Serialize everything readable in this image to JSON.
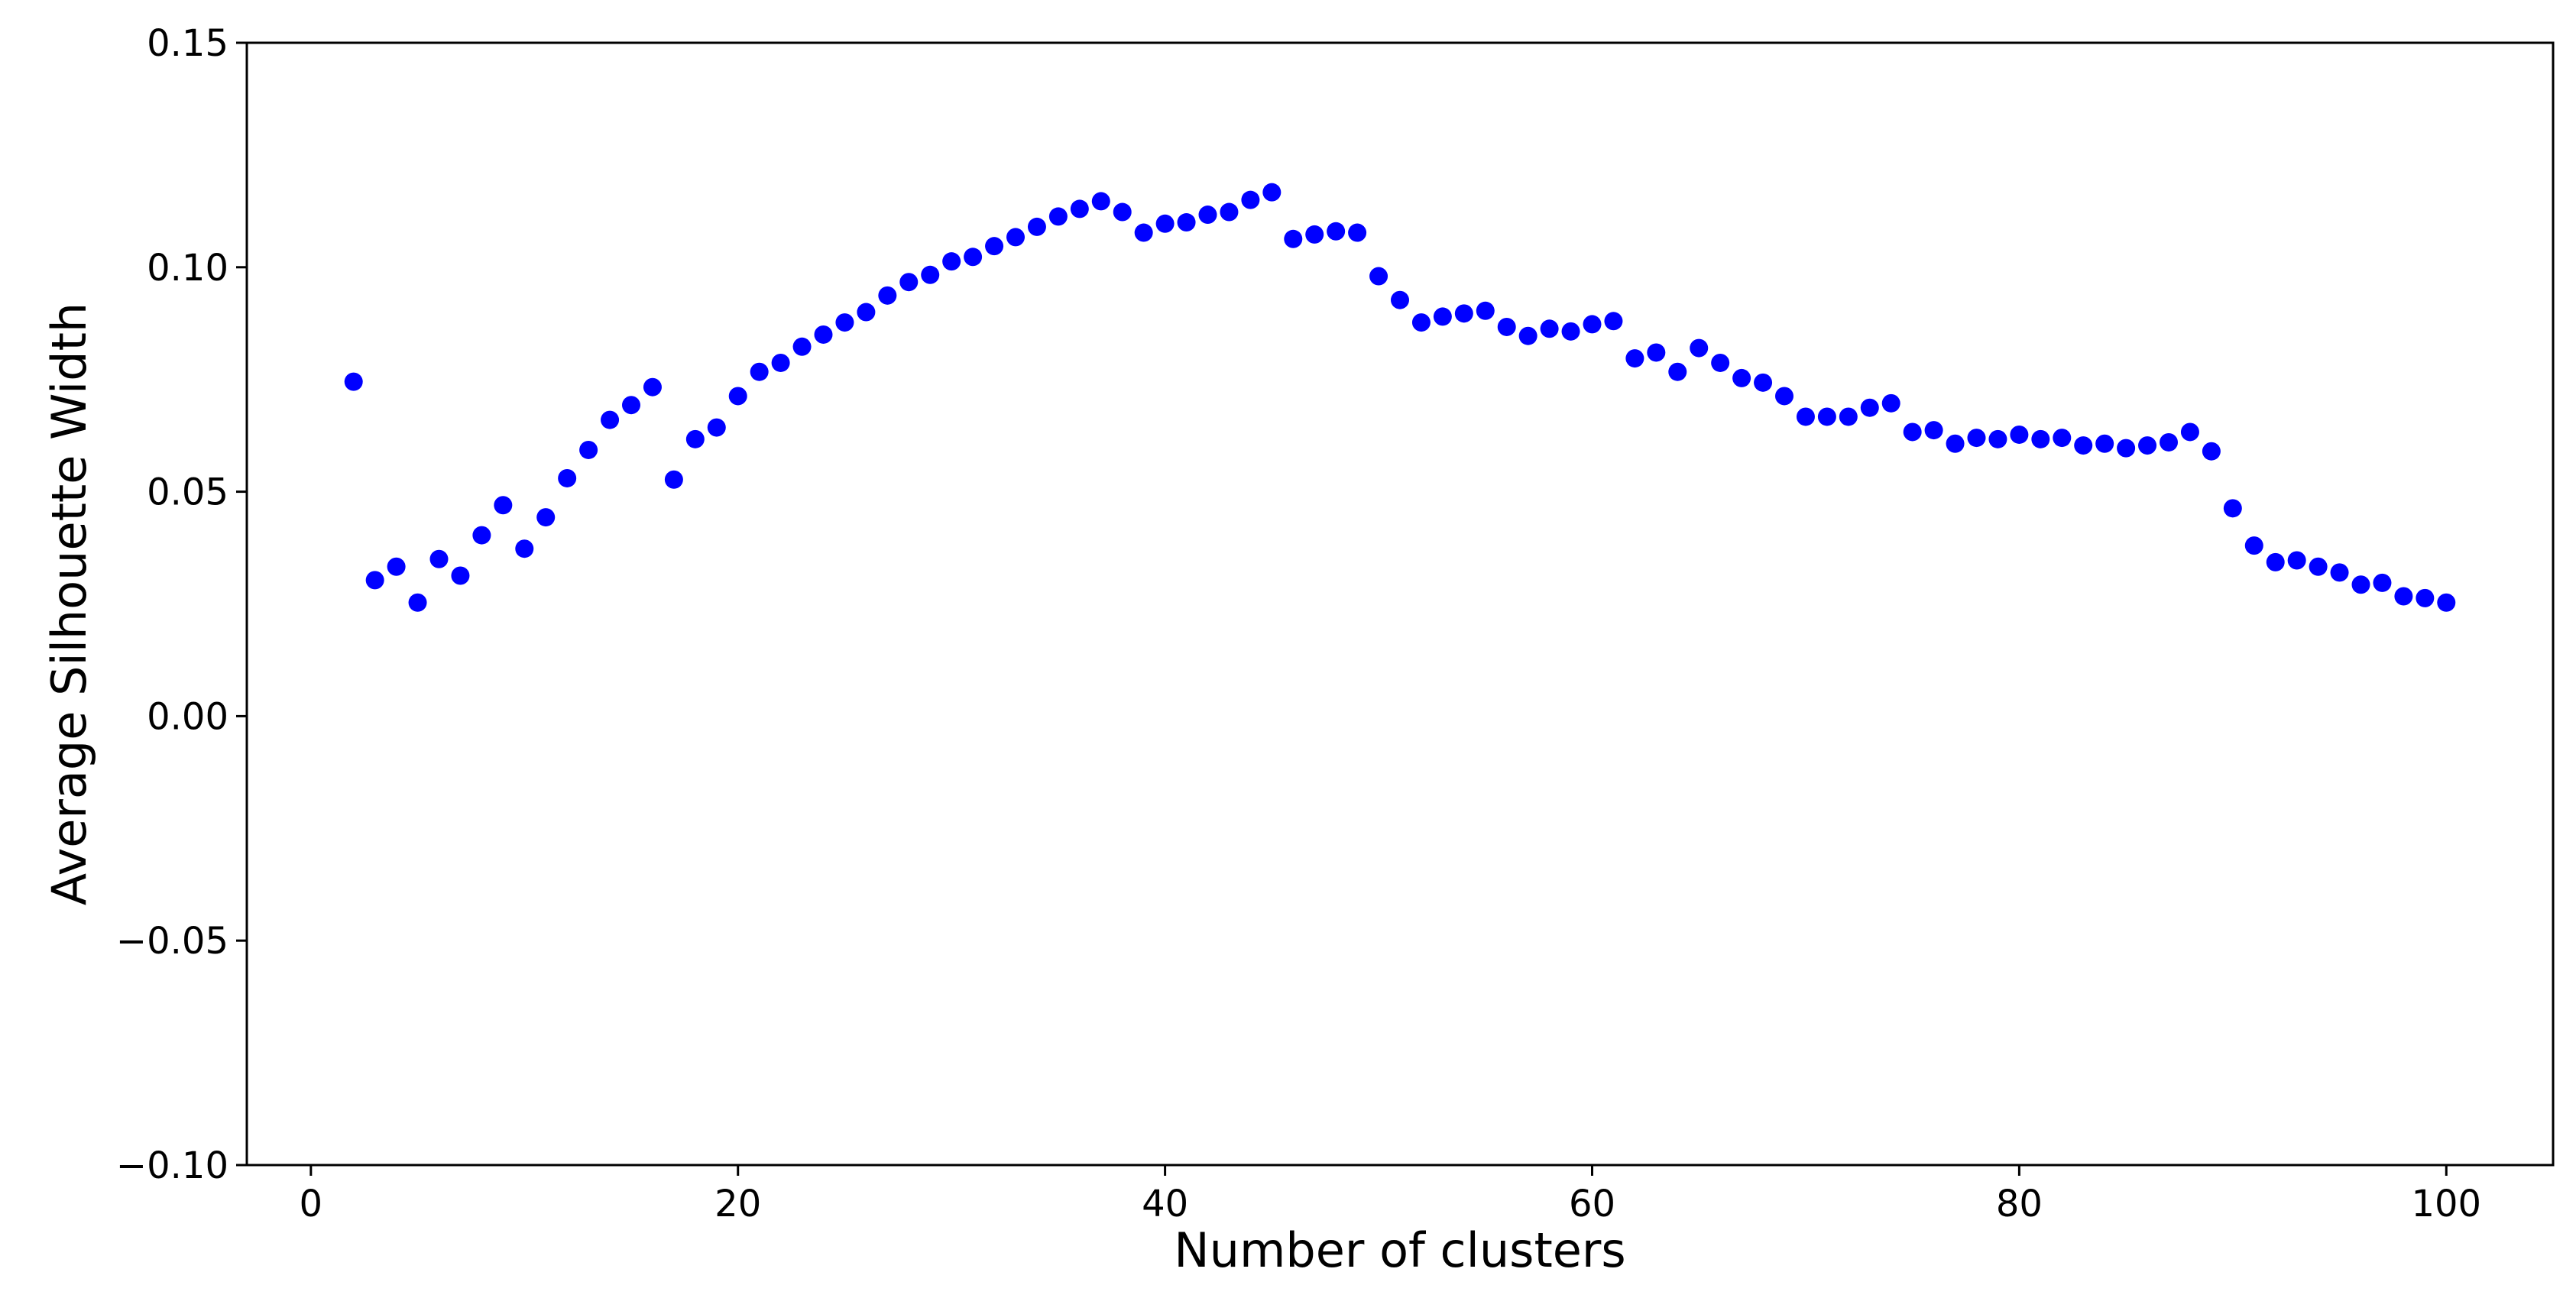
{
  "chart_data": {
    "type": "scatter",
    "xlabel": "Number of clusters",
    "ylabel": "Average Silhouette Width",
    "xlim": [
      -3,
      105
    ],
    "ylim": [
      -0.1,
      0.15
    ],
    "xticks": [
      0,
      20,
      40,
      60,
      80,
      100
    ],
    "xtick_labels": [
      "0",
      "20",
      "40",
      "60",
      "80",
      "100"
    ],
    "yticks": [
      -0.1,
      -0.05,
      0.0,
      0.05,
      0.1,
      0.15
    ],
    "ytick_labels": [
      "−0.10",
      "−0.05",
      "0.00",
      "0.05",
      "0.10",
      "0.15"
    ],
    "grid": false,
    "legend": false,
    "marker_color": "#0000ff",
    "x": [
      2,
      3,
      4,
      5,
      6,
      7,
      8,
      9,
      10,
      11,
      12,
      13,
      14,
      15,
      16,
      17,
      18,
      19,
      20,
      21,
      22,
      23,
      24,
      25,
      26,
      27,
      28,
      29,
      30,
      31,
      32,
      33,
      34,
      35,
      36,
      37,
      38,
      39,
      40,
      41,
      42,
      43,
      44,
      45,
      46,
      47,
      48,
      49,
      50,
      51,
      52,
      53,
      54,
      55,
      56,
      57,
      58,
      59,
      60,
      61,
      62,
      63,
      64,
      65,
      66,
      67,
      68,
      69,
      70,
      71,
      72,
      73,
      74,
      75,
      76,
      77,
      78,
      79,
      80,
      81,
      82,
      83,
      84,
      85,
      86,
      87,
      88,
      89,
      90,
      91,
      92,
      93,
      94,
      95,
      96,
      97,
      98,
      99,
      100
    ],
    "y": [
      0.0745,
      0.0303,
      0.0333,
      0.0253,
      0.035,
      0.0313,
      0.0403,
      0.047,
      0.0373,
      0.0443,
      0.053,
      0.0593,
      0.066,
      0.0693,
      0.0733,
      0.0527,
      0.0617,
      0.0643,
      0.0713,
      0.0767,
      0.0787,
      0.0823,
      0.085,
      0.0877,
      0.09,
      0.0937,
      0.0967,
      0.0983,
      0.1013,
      0.1023,
      0.1047,
      0.1067,
      0.109,
      0.1113,
      0.113,
      0.1147,
      0.1123,
      0.1077,
      0.1097,
      0.11,
      0.1117,
      0.1123,
      0.115,
      0.1167,
      0.1063,
      0.1073,
      0.108,
      0.1077,
      0.098,
      0.0927,
      0.0877,
      0.089,
      0.0897,
      0.0903,
      0.0867,
      0.0847,
      0.0863,
      0.0857,
      0.0873,
      0.088,
      0.0797,
      0.081,
      0.0767,
      0.082,
      0.0787,
      0.0753,
      0.0743,
      0.0713,
      0.0667,
      0.0667,
      0.0667,
      0.0687,
      0.0697,
      0.0633,
      0.0637,
      0.0607,
      0.062,
      0.0617,
      0.0627,
      0.0617,
      0.062,
      0.0603,
      0.0607,
      0.0597,
      0.0603,
      0.061,
      0.0633,
      0.059,
      0.0463,
      0.038,
      0.0343,
      0.0347,
      0.0333,
      0.032,
      0.0293,
      0.0297,
      0.0267,
      0.0263,
      0.0253
    ]
  }
}
